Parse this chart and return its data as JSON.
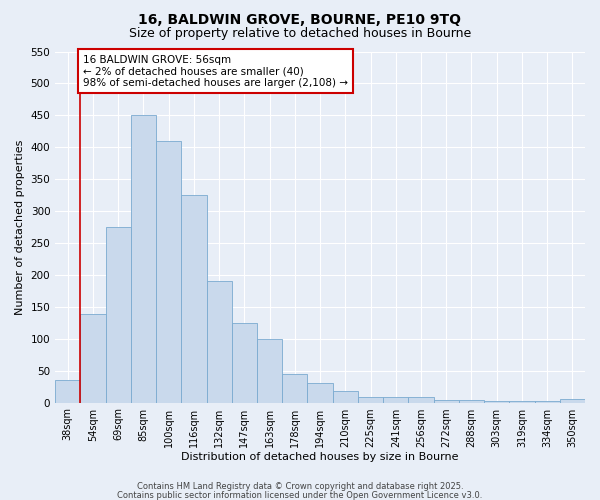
{
  "title1": "16, BALDWIN GROVE, BOURNE, PE10 9TQ",
  "title2": "Size of property relative to detached houses in Bourne",
  "xlabel": "Distribution of detached houses by size in Bourne",
  "ylabel": "Number of detached properties",
  "categories": [
    "38sqm",
    "54sqm",
    "69sqm",
    "85sqm",
    "100sqm",
    "116sqm",
    "132sqm",
    "147sqm",
    "163sqm",
    "178sqm",
    "194sqm",
    "210sqm",
    "225sqm",
    "241sqm",
    "256sqm",
    "272sqm",
    "288sqm",
    "303sqm",
    "319sqm",
    "334sqm",
    "350sqm"
  ],
  "values": [
    35,
    138,
    275,
    450,
    410,
    325,
    190,
    125,
    100,
    45,
    30,
    18,
    8,
    8,
    8,
    4,
    4,
    3,
    3,
    3,
    6
  ],
  "bar_color": "#c9d9ec",
  "bar_edge_color": "#7aaad0",
  "red_line_index": 1,
  "annotation_text": "16 BALDWIN GROVE: 56sqm\n← 2% of detached houses are smaller (40)\n98% of semi-detached houses are larger (2,108) →",
  "annotation_box_color": "#ffffff",
  "annotation_box_edge_color": "#cc0000",
  "ylim": [
    0,
    550
  ],
  "yticks": [
    0,
    50,
    100,
    150,
    200,
    250,
    300,
    350,
    400,
    450,
    500,
    550
  ],
  "background_color": "#e8eef7",
  "grid_color": "#ffffff",
  "footer1": "Contains HM Land Registry data © Crown copyright and database right 2025.",
  "footer2": "Contains public sector information licensed under the Open Government Licence v3.0."
}
